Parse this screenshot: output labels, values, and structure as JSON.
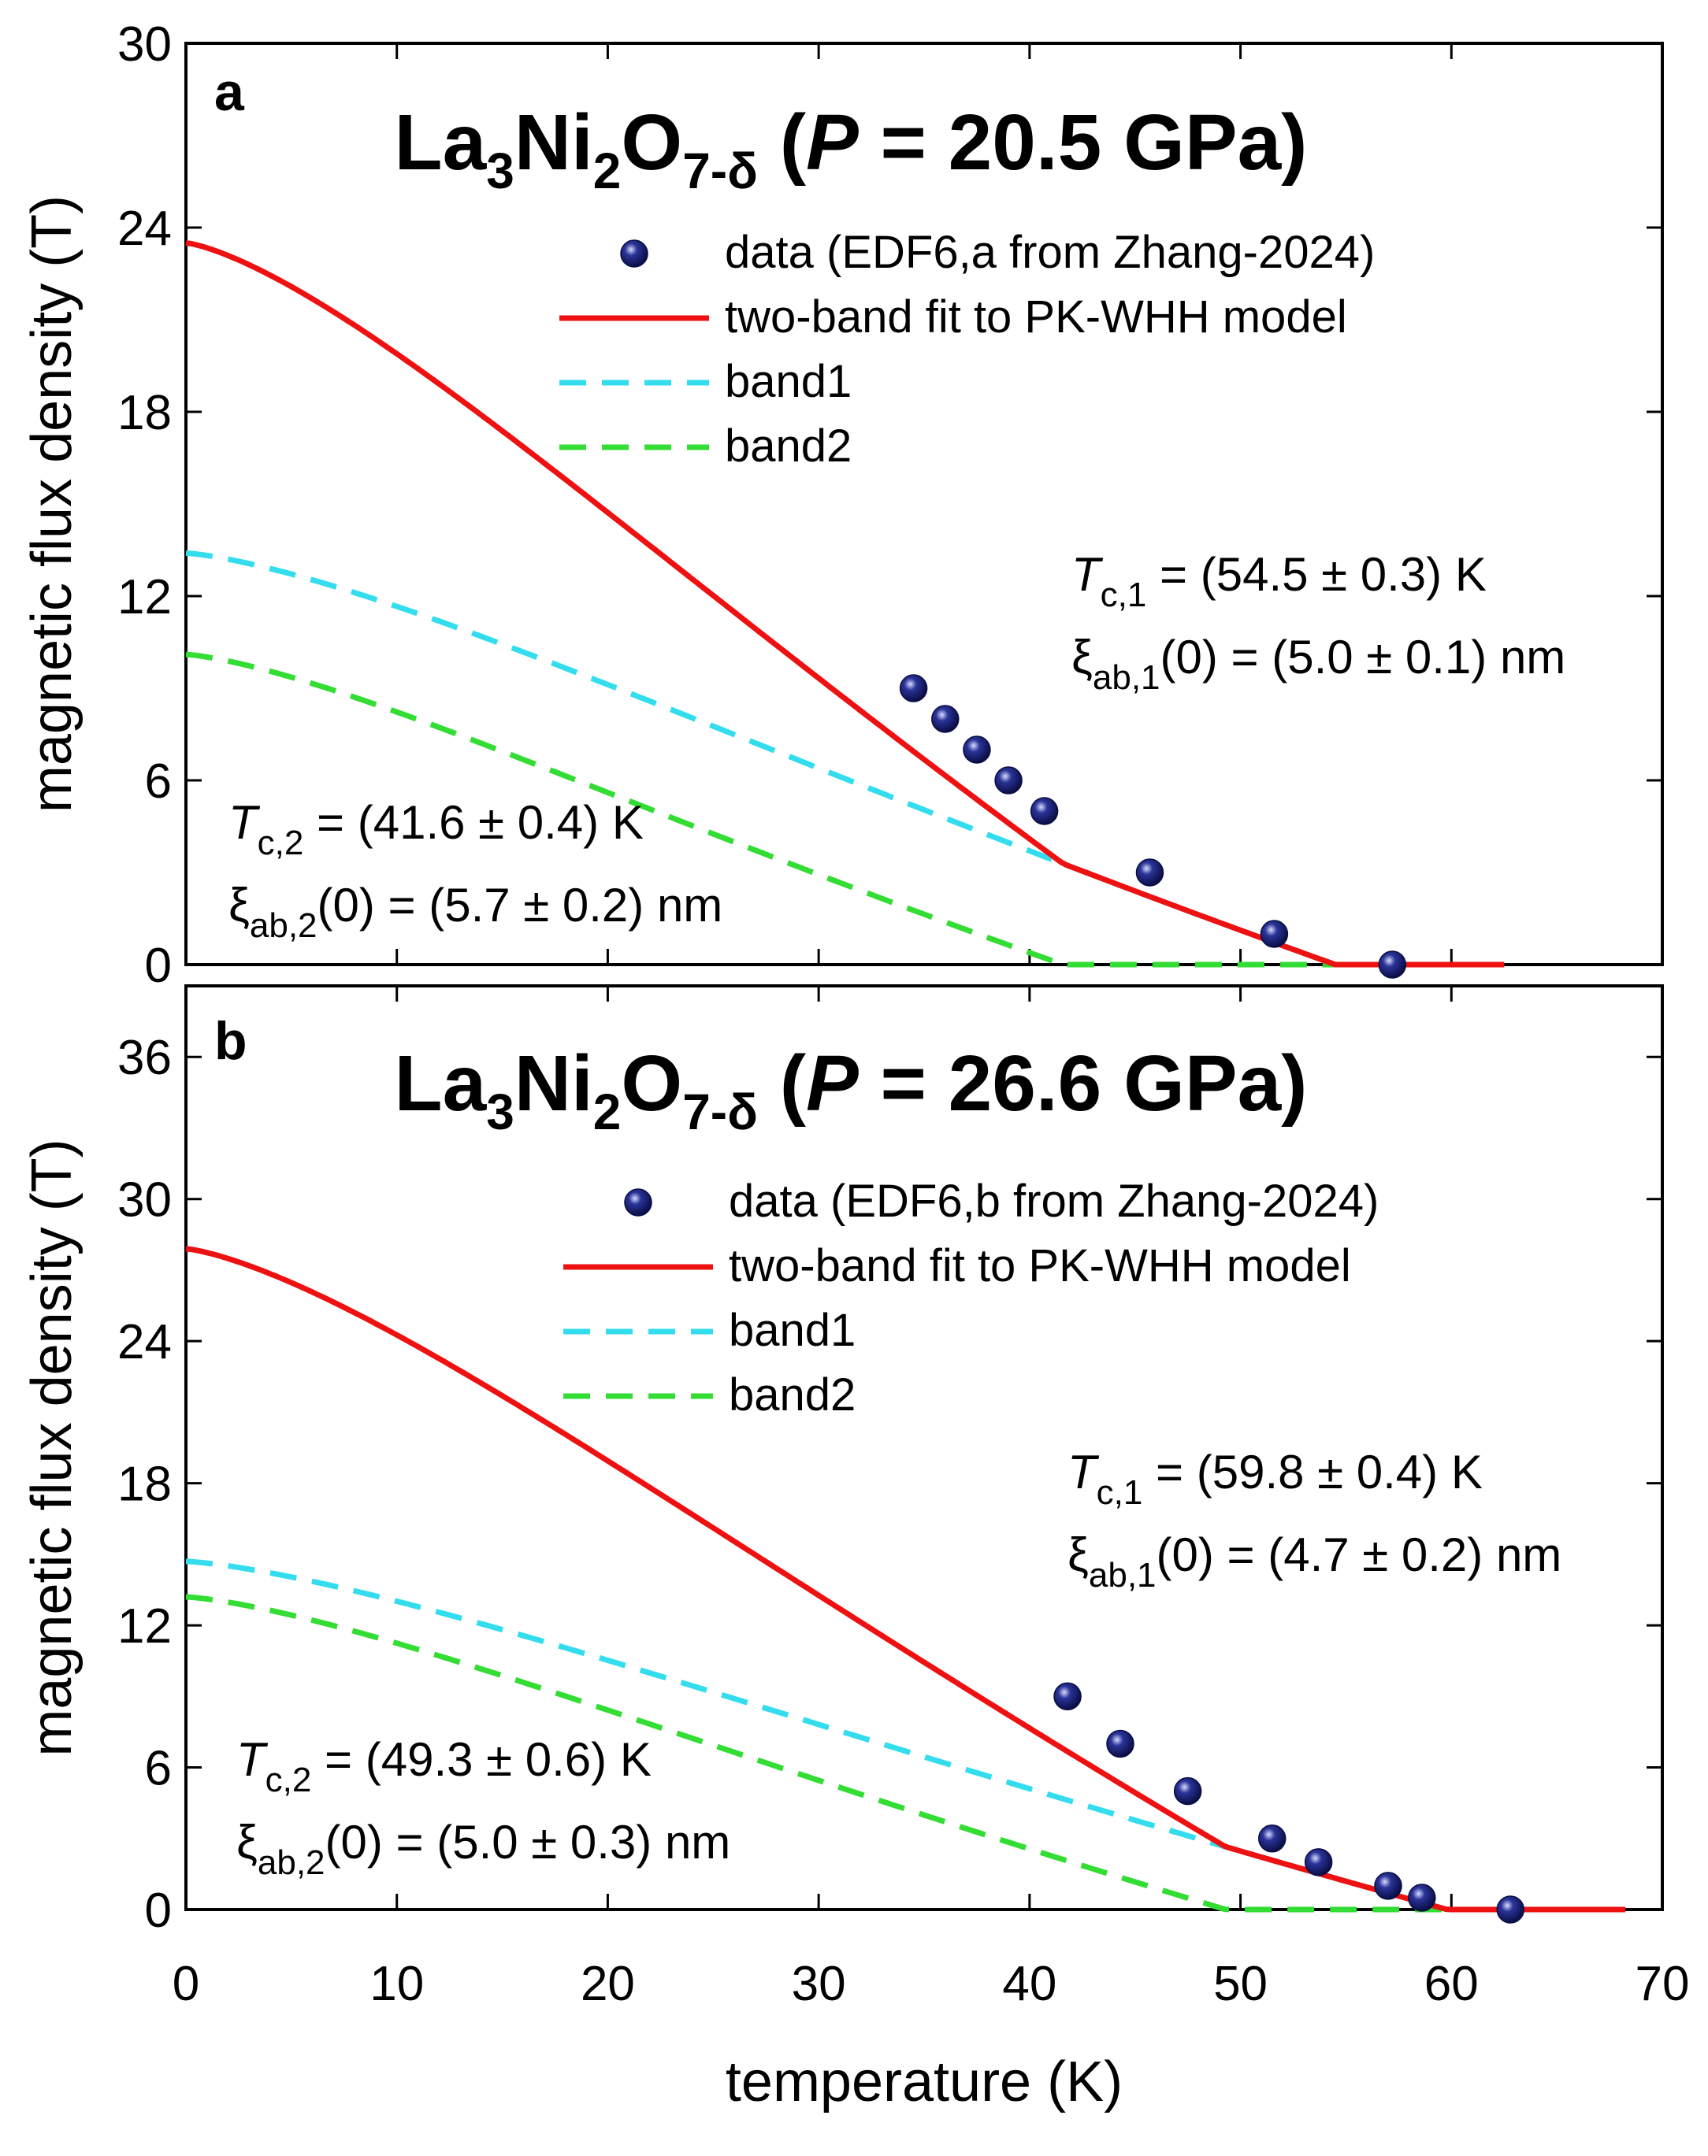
{
  "chart_data": [
    {
      "type": "line",
      "panel_label": "a",
      "title": {
        "main": "La",
        "s1": "3",
        "m2": "Ni",
        "s2": "2",
        "m3": "O",
        "s3": "7-δ",
        "open": " (",
        "P": "P",
        "rest": " = 20.5 GPa)"
      },
      "xlabel": "temperature (K)",
      "ylabel": "magnetic flux density (T)",
      "xlim": [
        0,
        70
      ],
      "ylim": [
        0,
        30
      ],
      "xticks": [
        0,
        10,
        20,
        30,
        40,
        50,
        60,
        70
      ],
      "yticks": [
        0,
        6,
        12,
        18,
        24,
        30
      ],
      "legend": [
        {
          "key": "data",
          "label": "data (EDF6,a from Zhang-2024)"
        },
        {
          "key": "fit",
          "label": "two-band fit to PK-WHH model"
        },
        {
          "key": "band1",
          "label": "band1"
        },
        {
          "key": "band2",
          "label": "band2"
        }
      ],
      "data_points": [
        [
          34.5,
          9
        ],
        [
          36.0,
          8
        ],
        [
          37.5,
          7
        ],
        [
          39.0,
          6
        ],
        [
          40.7,
          5
        ],
        [
          45.7,
          3
        ],
        [
          51.6,
          1
        ],
        [
          57.2,
          0
        ]
      ],
      "series": [
        {
          "name": "band1",
          "color": "#33ddee",
          "dash": true,
          "Tc": 54.5,
          "B0": 13.4,
          "p": 1.3
        },
        {
          "name": "band2",
          "color": "#33dd33",
          "dash": true,
          "Tc": 41.6,
          "B0": 10.1,
          "p": 1.3
        },
        {
          "name": "two-band fit to PK-WHH model",
          "color": "#ee1111",
          "dash": false,
          "sum": true
        }
      ],
      "annotations": {
        "tc1": {
          "T": "T",
          "sub": "c,1",
          "rest": " = (54.5 ± 0.3) K"
        },
        "xi1": {
          "xi": "ξ",
          "sub": "ab,1",
          "rest": "(0) = (5.0 ± 0.1) nm"
        },
        "tc2": {
          "T": "T",
          "sub": "c,2",
          "rest": " = (41.6 ± 0.4) K"
        },
        "xi2": {
          "xi": "ξ",
          "sub": "ab,2",
          "rest": "(0) = (5.7 ± 0.2) nm"
        }
      }
    },
    {
      "type": "line",
      "panel_label": "b",
      "title": {
        "main": "La",
        "s1": "3",
        "m2": "Ni",
        "s2": "2",
        "m3": "O",
        "s3": "7-δ",
        "open": " (",
        "P": "P",
        "rest": " = 26.6 GPa)"
      },
      "xlabel": "temperature (K)",
      "ylabel": "magnetic flux density (T)",
      "xlim": [
        0,
        70
      ],
      "ylim": [
        0,
        39
      ],
      "xticks": [
        0,
        10,
        20,
        30,
        40,
        50,
        60,
        70
      ],
      "yticks": [
        0,
        6,
        12,
        18,
        24,
        30,
        36
      ],
      "legend": [
        {
          "key": "data",
          "label": "data (EDF6,b from Zhang-2024)"
        },
        {
          "key": "fit",
          "label": "two-band fit to PK-WHH model"
        },
        {
          "key": "band1",
          "label": "band1"
        },
        {
          "key": "band2",
          "label": "band2"
        }
      ],
      "data_points": [
        [
          41.8,
          9
        ],
        [
          44.3,
          7
        ],
        [
          47.5,
          5
        ],
        [
          51.5,
          3
        ],
        [
          53.7,
          2
        ],
        [
          57.0,
          1
        ],
        [
          58.6,
          0.5
        ],
        [
          62.8,
          0
        ]
      ],
      "series": [
        {
          "name": "band1",
          "color": "#33ddee",
          "dash": true,
          "Tc": 59.8,
          "B0": 14.7,
          "p": 1.3
        },
        {
          "name": "band2",
          "color": "#33dd33",
          "dash": true,
          "Tc": 49.3,
          "B0": 13.2,
          "p": 1.3
        },
        {
          "name": "two-band fit to PK-WHH model",
          "color": "#ee1111",
          "dash": false,
          "sum": true
        }
      ],
      "annotations": {
        "tc1": {
          "T": "T",
          "sub": "c,1",
          "rest": " = (59.8 ± 0.4) K"
        },
        "xi1": {
          "xi": "ξ",
          "sub": "ab,1",
          "rest": "(0) = (4.7 ± 0.2) nm"
        },
        "tc2": {
          "T": "T",
          "sub": "c,2",
          "rest": " = (49.3 ± 0.6) K"
        },
        "xi2": {
          "xi": "ξ",
          "sub": "ab,2",
          "rest": "(0) = (5.0 ± 0.3) nm"
        }
      }
    }
  ]
}
